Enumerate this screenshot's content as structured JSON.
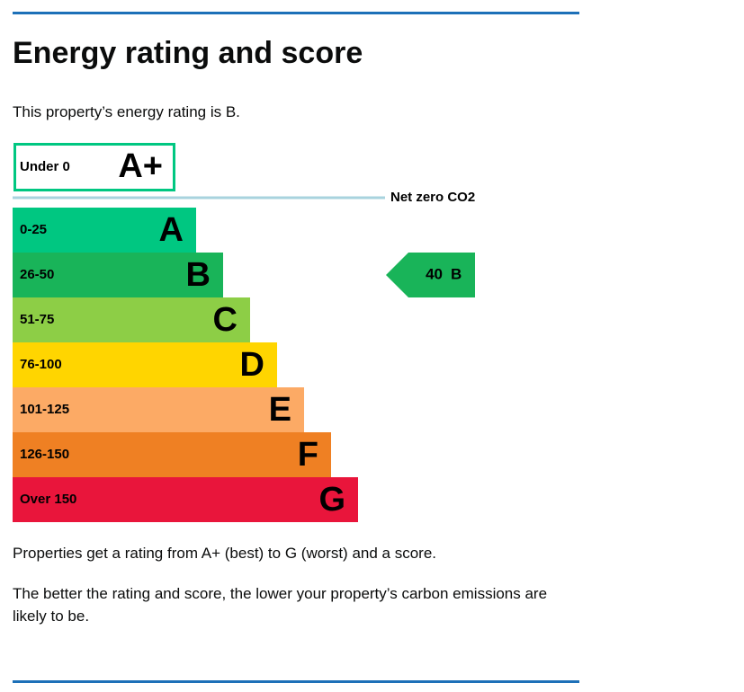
{
  "title": "Energy rating and score",
  "intro": "This property’s energy rating is B.",
  "top_band": {
    "range": "Under 0",
    "letter": "A+"
  },
  "net_zero_label": "Net zero CO2",
  "bands": [
    {
      "range": "0-25",
      "letter": "A",
      "color": "#00c781"
    },
    {
      "range": "26-50",
      "letter": "B",
      "color": "#19b459"
    },
    {
      "range": "51-75",
      "letter": "C",
      "color": "#8dce46"
    },
    {
      "range": "76-100",
      "letter": "D",
      "color": "#ffd500"
    },
    {
      "range": "101-125",
      "letter": "E",
      "color": "#fcaa65"
    },
    {
      "range": "126-150",
      "letter": "F",
      "color": "#ef8023"
    },
    {
      "range": "Over 150",
      "letter": "G",
      "color": "#e9153b"
    }
  ],
  "current": {
    "score": 40,
    "letter": "B"
  },
  "footer": [
    "Properties get a rating from A+ (best) to G (worst) and a score.",
    "The better the rating and score, the lower your property’s carbon emissions are likely to be."
  ]
}
